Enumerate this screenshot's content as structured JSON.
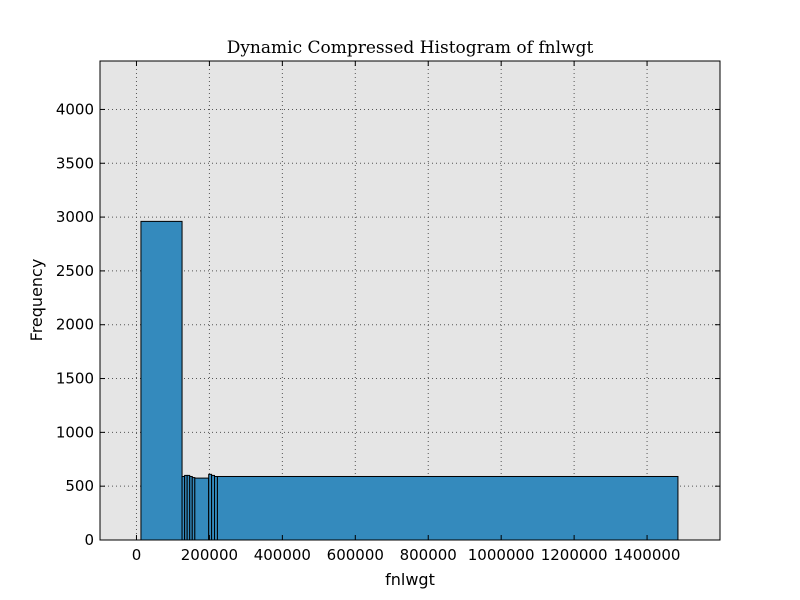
{
  "chart_data": {
    "type": "bar",
    "title": "Dynamic Compressed Histogram of fnlwgt",
    "xlabel": "fnlwgt",
    "ylabel": "Frequency",
    "xlim": [
      -100000,
      1600000
    ],
    "ylim": [
      0,
      4450
    ],
    "xticks": [
      0,
      200000,
      400000,
      600000,
      800000,
      1000000,
      1200000,
      1400000
    ],
    "xtick_labels": [
      "0",
      "200000",
      "400000",
      "600000",
      "800000",
      "1000000",
      "1200000",
      "1400000"
    ],
    "yticks": [
      0,
      500,
      1000,
      1500,
      2000,
      2500,
      3000,
      3500,
      4000
    ],
    "ytick_labels": [
      "0",
      "500",
      "1000",
      "1500",
      "2000",
      "2500",
      "3000",
      "3500",
      "4000"
    ],
    "grid": true,
    "bins": [
      {
        "x0": 12285,
        "x1": 125000,
        "count": 2960
      },
      {
        "x0": 125000,
        "x1": 132000,
        "count": 590
      },
      {
        "x0": 132000,
        "x1": 139000,
        "count": 600
      },
      {
        "x0": 139000,
        "x1": 146000,
        "count": 600
      },
      {
        "x0": 146000,
        "x1": 153000,
        "count": 590
      },
      {
        "x0": 153000,
        "x1": 160000,
        "count": 580
      },
      {
        "x0": 160000,
        "x1": 198000,
        "count": 575
      },
      {
        "x0": 198000,
        "x1": 206000,
        "count": 610
      },
      {
        "x0": 206000,
        "x1": 214000,
        "count": 600
      },
      {
        "x0": 214000,
        "x1": 222000,
        "count": 590
      },
      {
        "x0": 222000,
        "x1": 1484705,
        "count": 590
      }
    ],
    "colors": {
      "bar": "#348ABD",
      "edge": "#000000",
      "background": "#E5E5E5",
      "grid": "#555555"
    }
  }
}
